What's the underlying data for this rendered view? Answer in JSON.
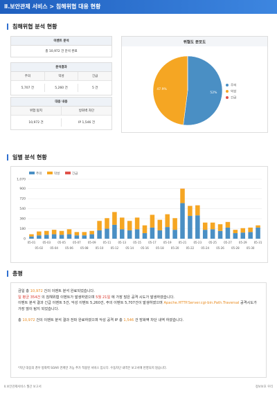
{
  "header": {
    "title": "Ⅱ.보안관제 서비스 > 침해위협 대응 현황"
  },
  "sections": {
    "analysis": "침해위협 분석 현황",
    "daily": "일별 분석 현황",
    "summary": "총평"
  },
  "tables": {
    "event": {
      "title": "이벤트 분석",
      "text": "총 10,972 건 분석 완료"
    },
    "result": {
      "title": "분석결과",
      "headers": [
        "주의",
        "악성",
        "긴급"
      ],
      "cells": [
        "5,707 건",
        "5,260 건",
        "5 건"
      ]
    },
    "response": {
      "title": "대응 내용",
      "headers": [
        "위험 탐지",
        "방화벽 차단"
      ],
      "cells": [
        "10,972 건",
        "IP 1,546 건"
      ]
    }
  },
  "chart_data": [
    {
      "type": "pie",
      "title": "위협도 분포도",
      "categories": [
        "주의",
        "악성",
        "긴급"
      ],
      "values": [
        52,
        47.9,
        0.05
      ],
      "value_labels": [
        "52%",
        "47.9%",
        null
      ],
      "colors": [
        "#4a8fc4",
        "#f5a623",
        "#e0524a"
      ],
      "legend": "right"
    },
    {
      "type": "bar",
      "stacked": true,
      "categories": [
        "05-01",
        "05-02",
        "05-03",
        "05-04",
        "05-05",
        "05-06",
        "05-07",
        "05-08",
        "05-09",
        "05-10",
        "05-11",
        "05-12",
        "05-13",
        "05-14",
        "05-15",
        "05-16",
        "05-17",
        "05-18",
        "05-19",
        "05-20",
        "05-21",
        "05-22",
        "05-23",
        "05-24",
        "05-25",
        "05-26",
        "05-27",
        "05-28",
        "05-29",
        "05-30",
        "05-31"
      ],
      "series": [
        {
          "name": "주의",
          "color": "#4a8fc4",
          "values": [
            40,
            60,
            70,
            80,
            70,
            80,
            60,
            60,
            80,
            150,
            180,
            250,
            170,
            150,
            170,
            100,
            200,
            150,
            210,
            160,
            640,
            410,
            420,
            160,
            170,
            140,
            200,
            100,
            110,
            120,
            200
          ]
        },
        {
          "name": "악성",
          "color": "#f5a623",
          "values": [
            40,
            70,
            70,
            80,
            70,
            90,
            60,
            60,
            60,
            170,
            190,
            230,
            210,
            170,
            210,
            140,
            230,
            190,
            230,
            210,
            260,
            180,
            180,
            130,
            120,
            120,
            100,
            60,
            80,
            80,
            40
          ]
        },
        {
          "name": "긴급",
          "color": "#e0524a",
          "values": [
            0,
            0,
            0,
            0,
            0,
            0,
            0,
            0,
            0,
            0,
            0,
            0,
            0,
            0,
            0,
            0,
            0,
            0,
            0,
            0,
            2,
            1,
            1,
            0,
            0,
            0,
            1,
            0,
            0,
            0,
            0
          ]
        }
      ],
      "ylim": [
        0,
        1070
      ],
      "yticks": [
        0,
        180,
        360,
        540,
        720,
        900,
        {
          "value": 1070,
          "label": "1,070"
        }
      ],
      "grid": true,
      "legend": "top-left"
    }
  ],
  "summary": {
    "paragraphs": [
      [
        {
          "text": "금일 총 "
        },
        {
          "text": "10,972",
          "color": "#e8891c"
        },
        {
          "text": " 건의 이벤트 분석 완료되었습니다."
        }
      ],
      [
        {
          "text": "일 평균 354건",
          "color": "#d9342b"
        },
        {
          "text": " 의 침해위협 이벤트가 발생하였으며 "
        },
        {
          "text": "5월 21일",
          "color": "#d9342b"
        },
        {
          "text": " 에 가장 많은 공격 시도가 발생하였습니다."
        }
      ],
      [
        {
          "text": "이벤트 분석 결과 긴급 이벤트 5건, 악성 이벤트 5,260건, 주의 이벤트 5,707건이 발생하였으며 "
        },
        {
          "text": "Apache.HTTP.Server.cgi-bin.Path.Traversal",
          "color": "#e8891c"
        },
        {
          "text": " 공격시도가 가장 많이 탐지 되었습니다."
        }
      ],
      [
        {
          "text": "총 "
        },
        {
          "text": "10,972",
          "color": "#e8891c"
        },
        {
          "text": " 건의 이벤트 분석 결과 전파 완료하였으며 악성 공격 IP 총 "
        },
        {
          "text": "1,546",
          "color": "#e8891c"
        },
        {
          "text": " 건 방화벽 차단 내역 하였습니다."
        }
      ]
    ],
    "note": "*차단 대응의 경우 방화벽 SOAR 연계만 가능 추가 적용된 서비스 입니다. 수동차단 내역은 보고서에 반영되지 않습니다."
  },
  "footer": {
    "left": "Ⅱ.보안관제서비스 월간 보고서",
    "right": "정보보호 우리"
  }
}
